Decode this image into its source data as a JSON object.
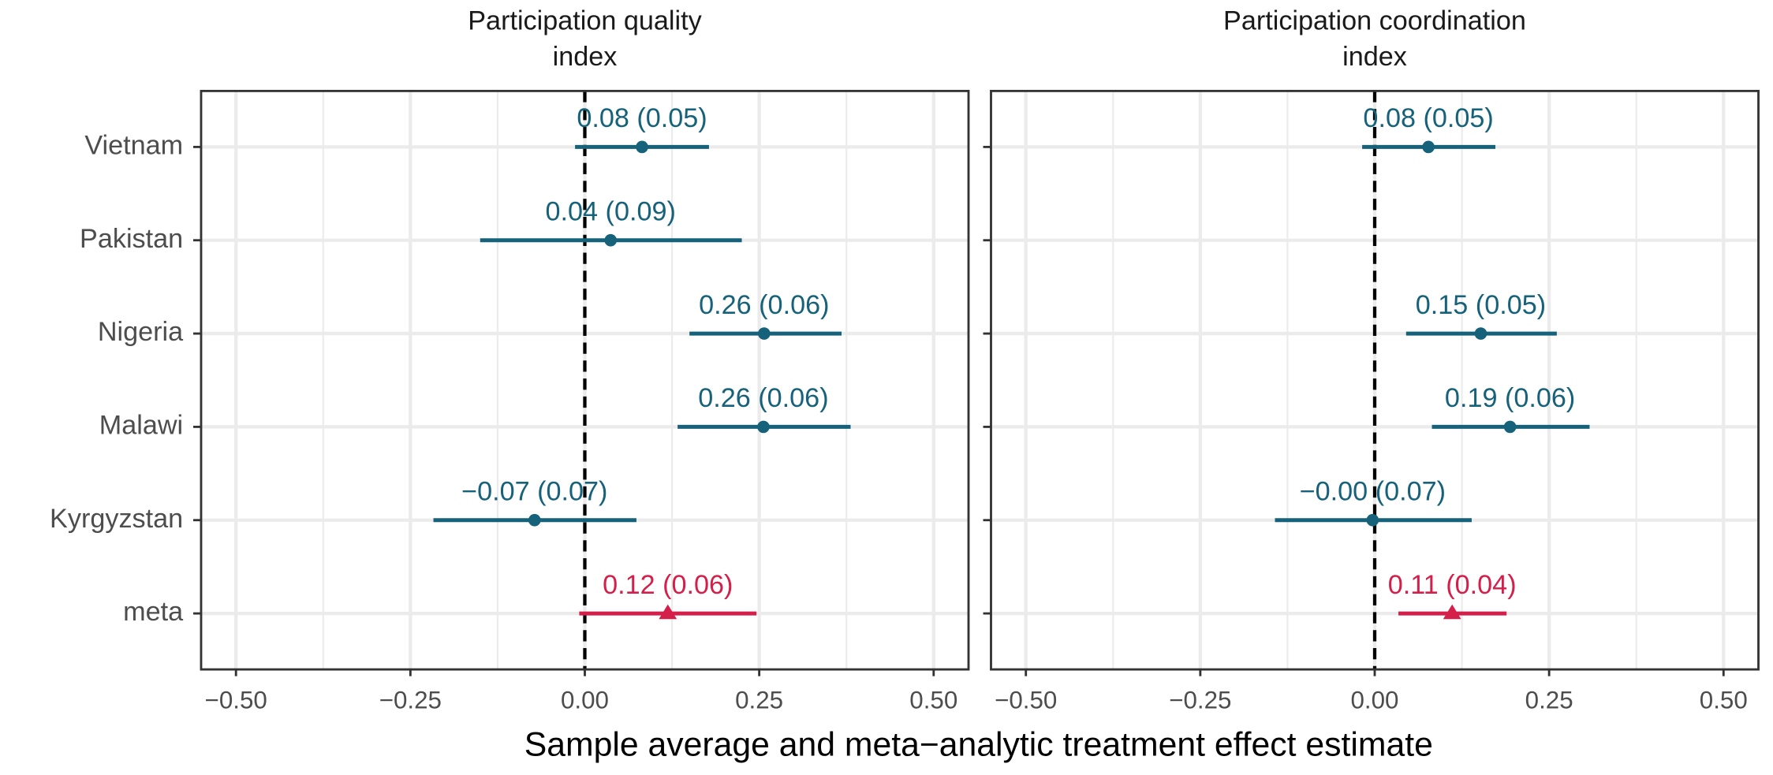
{
  "xlabel": "Sample average and meta−analytic treatment effect estimate",
  "chart_data": [
    {
      "type": "forest",
      "title": [
        "Participation quality",
        "index"
      ],
      "categories": [
        "Vietnam",
        "Pakistan",
        "Nigeria",
        "Malawi",
        "Kyrgyzstan",
        "meta"
      ],
      "values": [
        0.082,
        0.037,
        0.257,
        0.256,
        -0.072,
        0.119
      ],
      "lower": [
        -0.014,
        -0.15,
        0.15,
        0.133,
        -0.217,
        -0.008
      ],
      "upper": [
        0.178,
        0.225,
        0.368,
        0.381,
        0.074,
        0.246
      ],
      "value_labels": [
        "0.08 (0.05)",
        "0.04 (0.09)",
        "0.26 (0.06)",
        "0.26 (0.06)",
        "−0.07 (0.07)",
        "0.12 (0.06)"
      ],
      "colors": [
        "#16627a",
        "#16627a",
        "#16627a",
        "#16627a",
        "#16627a",
        "#d41f4a"
      ],
      "xlim": [
        -0.55,
        0.55
      ],
      "xticks": [
        {
          "value": -0.5,
          "label": "−0.50"
        },
        {
          "value": -0.25,
          "label": "−0.25"
        },
        {
          "value": 0,
          "label": "0.00"
        },
        {
          "value": 0.25,
          "label": "0.25"
        },
        {
          "value": 0.5,
          "label": "0.50"
        }
      ],
      "reference_line": 0,
      "grid": true
    },
    {
      "type": "forest",
      "title": [
        "Participation coordination",
        "index"
      ],
      "categories": [
        "Vietnam",
        "Pakistan",
        "Nigeria",
        "Malawi",
        "Kyrgyzstan",
        "meta"
      ],
      "values": [
        0.077,
        null,
        0.152,
        0.194,
        -0.003,
        0.111
      ],
      "lower": [
        -0.018,
        null,
        0.045,
        0.082,
        -0.143,
        0.034
      ],
      "upper": [
        0.173,
        null,
        0.261,
        0.308,
        0.139,
        0.189
      ],
      "value_labels": [
        "0.08 (0.05)",
        null,
        "0.15 (0.05)",
        "0.19 (0.06)",
        "−0.00 (0.07)",
        "0.11 (0.04)"
      ],
      "colors": [
        "#16627a",
        "#16627a",
        "#16627a",
        "#16627a",
        "#16627a",
        "#d41f4a"
      ],
      "xlim": [
        -0.55,
        0.55
      ],
      "xticks": [
        {
          "value": -0.5,
          "label": "−0.50"
        },
        {
          "value": -0.25,
          "label": "−0.25"
        },
        {
          "value": 0,
          "label": "0.00"
        },
        {
          "value": 0.25,
          "label": "0.25"
        },
        {
          "value": 0.5,
          "label": "0.50"
        }
      ],
      "reference_line": 0,
      "grid": true
    }
  ]
}
